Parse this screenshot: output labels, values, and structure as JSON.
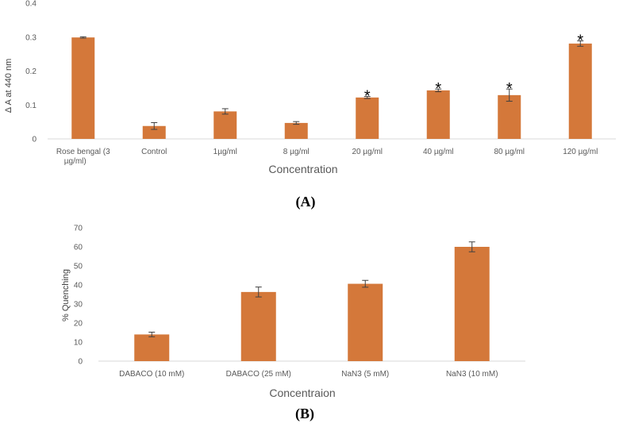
{
  "chart_data": [
    {
      "type": "bar",
      "panel_label": "(A)",
      "xlabel": "Concentration",
      "ylabel": "Δ A at 440 nm",
      "ylim": [
        0,
        0.4
      ],
      "yticks": [
        "0",
        "0.1",
        "0.2",
        "0.3",
        "0.4"
      ],
      "categories": [
        [
          "Rose bengal (3",
          "µg/ml)"
        ],
        [
          "Control"
        ],
        [
          "1µg/ml"
        ],
        [
          "8 µg/ml"
        ],
        [
          "20 µg/ml"
        ],
        [
          "40 µg/ml"
        ],
        [
          "80  µg/ml"
        ],
        [
          "120 µg/ml"
        ]
      ],
      "values": [
        0.299,
        0.038,
        0.081,
        0.047,
        0.122,
        0.143,
        0.129,
        0.281
      ],
      "errors": [
        0.002,
        0.01,
        0.008,
        0.004,
        0.003,
        0.004,
        0.018,
        0.008
      ],
      "significance": [
        "",
        "",
        "",
        "",
        "*",
        "*",
        "*",
        "*"
      ],
      "color": "#d4783a"
    },
    {
      "type": "bar",
      "panel_label": "(B)",
      "xlabel": "Concentraion",
      "ylabel": "% Quenching",
      "ylim": [
        0,
        70
      ],
      "yticks": [
        "0",
        "10",
        "20",
        "30",
        "40",
        "50",
        "60",
        "70"
      ],
      "categories": [
        [
          "DABACO (10 mM)"
        ],
        [
          "DABACO (25 mM)"
        ],
        [
          "NaN3 (5 mM)"
        ],
        [
          "NaN3 (10 mM)"
        ]
      ],
      "values": [
        14,
        36.3,
        40.6,
        60
      ],
      "errors": [
        1.2,
        2.6,
        1.8,
        2.6
      ],
      "significance": [
        "",
        "",
        "",
        ""
      ],
      "color": "#d4783a"
    }
  ]
}
